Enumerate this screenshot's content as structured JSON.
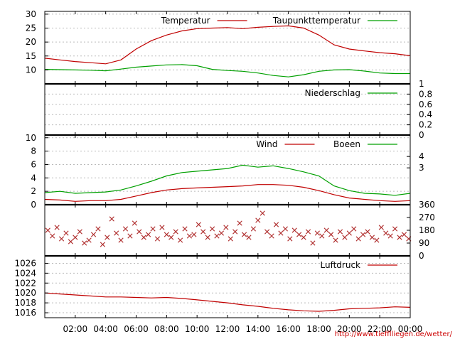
{
  "credit": "http://www.tiefflliegen.de/wetter/",
  "colors": {
    "red": "#c00000",
    "green": "#00a000",
    "grid": "#bbbbbb",
    "marker_red": "#b03030"
  },
  "x_axis": {
    "ticks": [
      {
        "value": 2,
        "label": "02:00"
      },
      {
        "value": 4,
        "label": "04:00"
      },
      {
        "value": 6,
        "label": "06:00"
      },
      {
        "value": 8,
        "label": "08:00"
      },
      {
        "value": 10,
        "label": "10:00"
      },
      {
        "value": 12,
        "label": "12:00"
      },
      {
        "value": 14,
        "label": "14:00"
      },
      {
        "value": 16,
        "label": "16:00"
      },
      {
        "value": 18,
        "label": "18:00"
      },
      {
        "value": 20,
        "label": "20:00"
      },
      {
        "value": 22,
        "label": "22:00"
      },
      {
        "value": 24,
        "label": "00:00"
      }
    ],
    "xlim": [
      0,
      24
    ]
  },
  "chart_data": [
    {
      "type": "line",
      "ylim": [
        5,
        31
      ],
      "left_ticks": [
        "10",
        "15",
        "20",
        "25",
        "30"
      ],
      "left_tick_values": [
        10,
        15,
        20,
        25,
        30
      ],
      "grid": true,
      "legend_position": "top",
      "series": [
        {
          "name": "Temperatur",
          "color": "red",
          "x": [
            0,
            1,
            2,
            3,
            4,
            5,
            6,
            7,
            8,
            9,
            10,
            11,
            12,
            13,
            14,
            15,
            16,
            17,
            18,
            19,
            20,
            21,
            22,
            23,
            24
          ],
          "y": [
            14.2,
            13.6,
            13.0,
            12.6,
            12.2,
            13.6,
            17.5,
            20.5,
            22.5,
            24.0,
            24.8,
            25.0,
            25.2,
            24.8,
            25.3,
            25.6,
            25.8,
            25.0,
            22.5,
            19.0,
            17.5,
            16.8,
            16.2,
            15.8,
            15.1
          ]
        },
        {
          "name": "Taupunkttemperatur",
          "color": "green",
          "x": [
            0,
            1,
            2,
            3,
            4,
            5,
            6,
            7,
            8,
            9,
            10,
            11,
            12,
            13,
            14,
            15,
            16,
            17,
            18,
            19,
            20,
            21,
            22,
            23,
            24
          ],
          "y": [
            10.2,
            10.1,
            10.0,
            9.9,
            9.7,
            10.3,
            11.0,
            11.4,
            11.8,
            11.9,
            11.5,
            10.2,
            9.8,
            9.5,
            8.9,
            8.0,
            7.5,
            8.3,
            9.5,
            10.0,
            10.1,
            9.6,
            8.9,
            8.7,
            8.7
          ]
        }
      ]
    },
    {
      "type": "line",
      "ylim": [
        0,
        1
      ],
      "right_ticks": [
        "0",
        "0.2",
        "0.4",
        "0.6",
        "0.8",
        "1"
      ],
      "right_tick_values": [
        0,
        0.2,
        0.4,
        0.6,
        0.8,
        1
      ],
      "grid": true,
      "legend_position": "top",
      "series": [
        {
          "name": "Niederschlag",
          "color": "green",
          "x": [
            0,
            24
          ],
          "y": [
            0,
            0
          ]
        }
      ]
    },
    {
      "type": "line",
      "ylim": [
        0,
        10.4
      ],
      "left_ticks": [
        "0",
        "2",
        "4",
        "6",
        "8",
        "10"
      ],
      "left_tick_values": [
        0,
        2,
        4,
        6,
        8,
        10
      ],
      "right_ticks": [
        "3",
        "4"
      ],
      "right_tick_values": [
        5.5,
        7.2
      ],
      "grid": true,
      "legend_position": "top",
      "series": [
        {
          "name": "Wind",
          "color": "red",
          "x": [
            0,
            1,
            2,
            3,
            4,
            5,
            6,
            7,
            8,
            9,
            10,
            11,
            12,
            13,
            14,
            15,
            16,
            17,
            18,
            19,
            20,
            21,
            22,
            23,
            24
          ],
          "y": [
            0.8,
            0.7,
            0.5,
            0.6,
            0.6,
            0.8,
            1.3,
            1.8,
            2.2,
            2.4,
            2.5,
            2.6,
            2.7,
            2.8,
            3.0,
            3.0,
            2.9,
            2.6,
            2.1,
            1.5,
            1.0,
            0.8,
            0.6,
            0.5,
            0.6
          ]
        },
        {
          "name": "Boeen",
          "color": "green",
          "x": [
            0,
            1,
            2,
            3,
            4,
            5,
            6,
            7,
            8,
            9,
            10,
            11,
            12,
            13,
            14,
            15,
            16,
            17,
            18,
            19,
            20,
            21,
            22,
            23,
            24
          ],
          "y": [
            1.8,
            2.0,
            1.7,
            1.8,
            1.9,
            2.2,
            2.8,
            3.5,
            4.3,
            4.8,
            5.0,
            5.2,
            5.4,
            5.9,
            5.6,
            5.8,
            5.4,
            4.9,
            4.3,
            2.8,
            2.1,
            1.7,
            1.6,
            1.4,
            1.7
          ]
        }
      ]
    },
    {
      "type": "scatter",
      "ylim": [
        0,
        360
      ],
      "right_ticks": [
        "0",
        "90",
        "180",
        "270",
        "360"
      ],
      "right_tick_values": [
        0,
        90,
        180,
        270,
        360
      ],
      "marker": "x",
      "series": [
        {
          "name": "",
          "color": "marker_red",
          "x": [
            0.2,
            0.5,
            0.8,
            1.1,
            1.4,
            1.7,
            2.0,
            2.3,
            2.6,
            2.9,
            3.2,
            3.5,
            3.8,
            4.1,
            4.4,
            4.7,
            5.0,
            5.3,
            5.6,
            5.9,
            6.2,
            6.5,
            6.8,
            7.1,
            7.4,
            7.7,
            8.0,
            8.3,
            8.6,
            8.9,
            9.2,
            9.5,
            9.8,
            10.1,
            10.4,
            10.7,
            11.0,
            11.3,
            11.6,
            11.9,
            12.2,
            12.5,
            12.8,
            13.1,
            13.4,
            13.7,
            14.0,
            14.3,
            14.6,
            14.9,
            15.2,
            15.5,
            15.8,
            16.1,
            16.4,
            16.7,
            17.0,
            17.3,
            17.6,
            17.9,
            18.2,
            18.5,
            18.8,
            19.1,
            19.4,
            19.7,
            20.0,
            20.3,
            20.6,
            20.9,
            21.2,
            21.5,
            21.8,
            22.1,
            22.4,
            22.7,
            23.0,
            23.3,
            23.6,
            23.9
          ],
          "y": [
            180,
            140,
            200,
            120,
            160,
            100,
            130,
            170,
            90,
            110,
            150,
            190,
            80,
            130,
            260,
            160,
            110,
            190,
            140,
            230,
            170,
            130,
            150,
            190,
            120,
            200,
            150,
            130,
            170,
            110,
            190,
            140,
            150,
            220,
            170,
            130,
            190,
            140,
            160,
            200,
            120,
            170,
            230,
            150,
            130,
            190,
            250,
            300,
            170,
            140,
            220,
            160,
            190,
            120,
            180,
            150,
            130,
            170,
            90,
            160,
            140,
            180,
            150,
            110,
            170,
            130,
            160,
            190,
            120,
            150,
            170,
            130,
            110,
            200,
            160,
            140,
            190,
            130,
            150,
            120
          ]
        }
      ]
    },
    {
      "type": "line",
      "ylim": [
        1015,
        1027.5
      ],
      "left_ticks": [
        "1016",
        "1018",
        "1020",
        "1022",
        "1024",
        "1026"
      ],
      "left_tick_values": [
        1016,
        1018,
        1020,
        1022,
        1024,
        1026
      ],
      "grid": true,
      "legend_position": "top",
      "series": [
        {
          "name": "Luftdruck",
          "color": "red",
          "x": [
            0,
            1,
            2,
            3,
            4,
            5,
            6,
            7,
            8,
            9,
            10,
            11,
            12,
            13,
            14,
            15,
            16,
            17,
            18,
            19,
            20,
            21,
            22,
            23,
            24
          ],
          "y": [
            1020.0,
            1019.8,
            1019.6,
            1019.4,
            1019.2,
            1019.2,
            1019.1,
            1019.0,
            1019.1,
            1018.9,
            1018.6,
            1018.3,
            1018.0,
            1017.6,
            1017.3,
            1016.9,
            1016.6,
            1016.4,
            1016.3,
            1016.5,
            1016.8,
            1016.9,
            1017.0,
            1017.2,
            1017.1
          ]
        }
      ]
    }
  ]
}
